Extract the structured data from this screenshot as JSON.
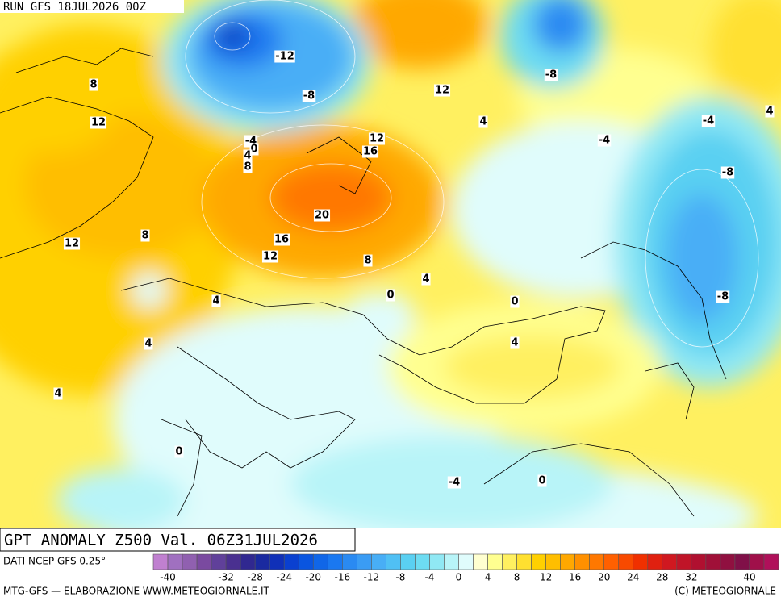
{
  "header": {
    "run": "RUN GFS 18JUL2026 00Z"
  },
  "title": "GPT ANOMALY Z500 Val. 06Z31JUL2026",
  "source": "DATI NCEP GFS 0.25°",
  "footer": {
    "left": "MTG-GFS — ELABORAZIONE WWW.METEOGIORNALE.IT",
    "right": "(C) METEOGIORNALE"
  },
  "colorbar": {
    "range": [
      -42,
      44
    ],
    "colors": [
      "#c080d0",
      "#a070c0",
      "#9060b0",
      "#7a4aa0",
      "#60409a",
      "#4a3090",
      "#302890",
      "#1a2aa0",
      "#1030b8",
      "#0a40d0",
      "#0a55e0",
      "#1066e8",
      "#1a78f0",
      "#2a8af2",
      "#3a9cf4",
      "#48aef6",
      "#50c0f4",
      "#5ad0f2",
      "#6ddcf2",
      "#90e8f4",
      "#b8f4f8",
      "#e0fcfc",
      "#ffffd0",
      "#ffff90",
      "#fff060",
      "#ffe030",
      "#ffd000",
      "#ffbe00",
      "#ffa800",
      "#ff9000",
      "#ff7800",
      "#ff6000",
      "#f84a00",
      "#f03000",
      "#e02010",
      "#d01820",
      "#c01428",
      "#b01030",
      "#a01038",
      "#901040",
      "#801048",
      "#a0104a",
      "#b0105a"
    ],
    "ticks": [
      -40,
      -32,
      -28,
      -24,
      -20,
      -16,
      -12,
      -8,
      -4,
      0,
      4,
      8,
      12,
      16,
      20,
      24,
      28,
      32,
      40
    ]
  },
  "map": {
    "contour_labels": [
      "-12",
      "12",
      "-8",
      "8",
      "-8",
      "4",
      "-4",
      "4",
      "12",
      "-4",
      "0",
      "4",
      "8",
      "12",
      "16",
      "-4",
      "-8",
      "20",
      "12",
      "8",
      "16",
      "12",
      "8",
      "4",
      "0",
      "0",
      "4",
      "-8",
      "4",
      "4",
      "4",
      "0",
      "-4",
      "0"
    ]
  }
}
